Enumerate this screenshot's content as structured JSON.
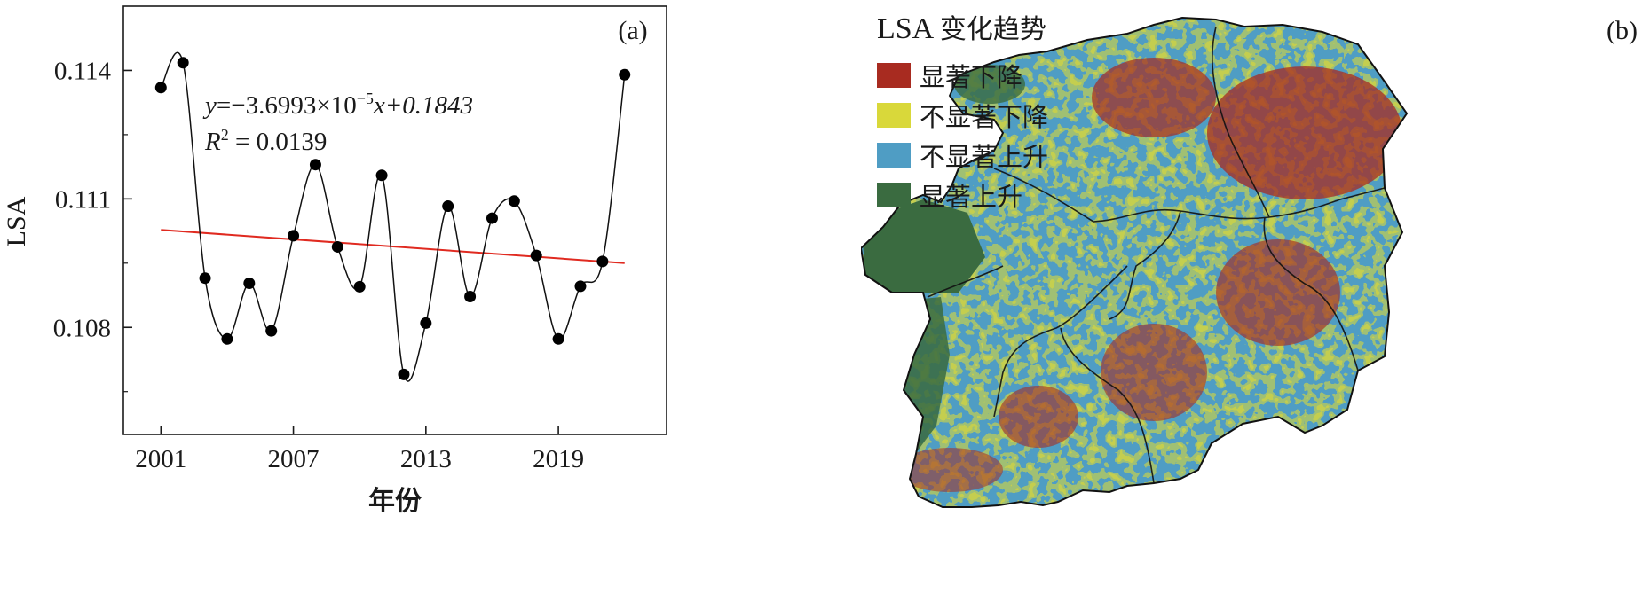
{
  "panel_a": {
    "label": "(a)",
    "equation": {
      "y": "y",
      "eq": "=−3.6993×10",
      "exp": "−5",
      "rest": "x+0.1843"
    },
    "r2": {
      "r": "R",
      "sup": "2",
      "rest": " = 0.0139"
    },
    "colors": {
      "curve": "#111111",
      "trend": "#e02a20",
      "point": "#000000"
    }
  },
  "chart_data": {
    "type": "scatter",
    "xlabel": "年份",
    "ylabel": "LSA",
    "xlim": [
      1999.3,
      2023.9
    ],
    "ylim": [
      0.1055,
      0.1155
    ],
    "xticks": [
      2001,
      2007,
      2013,
      2019
    ],
    "yticks": [
      0.108,
      0.111,
      0.114
    ],
    "ytick_labels": [
      "0.108",
      "0.111",
      "0.114"
    ],
    "series": [
      {
        "x": [
          2001,
          2002,
          2003,
          2004,
          2005,
          2006,
          2007,
          2008,
          2009,
          2010,
          2011,
          2012,
          2013,
          2014,
          2015,
          2016,
          2017,
          2018,
          2019,
          2020,
          2021,
          2022
        ],
        "values": [
          0.1136,
          0.11418,
          0.10915,
          0.10773,
          0.10903,
          0.10792,
          0.11014,
          0.1118,
          0.10988,
          0.10895,
          0.11155,
          0.1069,
          0.1081,
          0.11083,
          0.10872,
          0.11055,
          0.11095,
          0.10968,
          0.10773,
          0.10896,
          0.10954,
          0.1139
        ]
      }
    ],
    "trendline": {
      "slope": -3.6993e-05,
      "intercept": 0.1843,
      "r2": 0.0139
    }
  },
  "panel_b": {
    "label": "(b)",
    "legend": {
      "title_latin": "LSA",
      "title_cjk": "变化趋势",
      "items": [
        {
          "label": "显著下降",
          "color": "#a82b20"
        },
        {
          "label": "不显著下降",
          "color": "#d9d83a"
        },
        {
          "label": "不显著上升",
          "color": "#4f9dc4"
        },
        {
          "label": "显著上升",
          "color": "#3a6b40"
        }
      ]
    }
  }
}
